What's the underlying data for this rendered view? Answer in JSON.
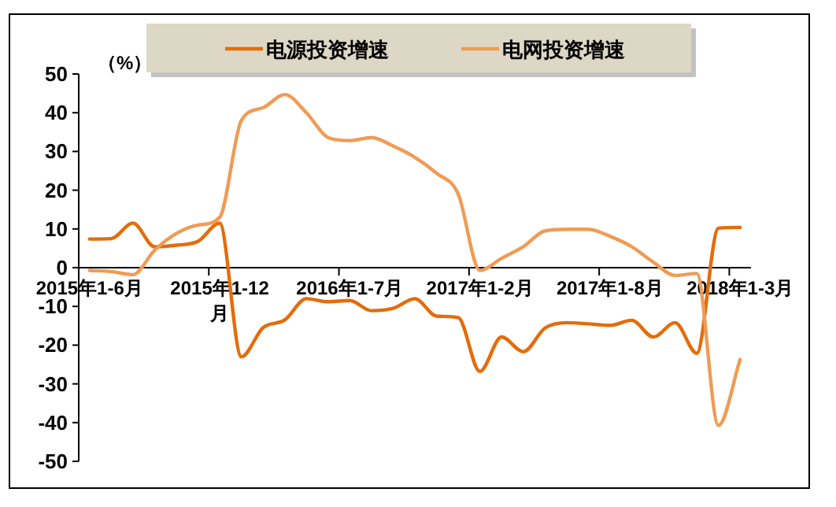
{
  "chart_data": {
    "type": "line",
    "categories": [
      "2015年1-6月",
      null,
      null,
      null,
      null,
      null,
      "2015年1-12月",
      null,
      null,
      null,
      null,
      null,
      "2016年1-7月",
      null,
      null,
      null,
      null,
      null,
      "2017年1-2月",
      null,
      null,
      null,
      null,
      null,
      "2017年1-8月",
      null,
      null,
      null,
      null,
      null,
      "2018年1-3月"
    ],
    "series": [
      {
        "name": "电源投资增速",
        "color": "#e46c0a",
        "values": [
          7.4,
          7.5,
          11.5,
          5.4,
          5.8,
          6.8,
          11.5,
          -23,
          -15.5,
          -13.5,
          -8,
          -8.8,
          -8.5,
          -11.1,
          -10.5,
          -8,
          -12.5,
          -12.9,
          -26.8,
          -17.9,
          -21.7,
          -15.6,
          -14.2,
          -14.5,
          -14.9,
          -13.6,
          -17.9,
          -14.2,
          -22.1,
          10.2,
          10.4
        ]
      },
      {
        "name": "电网投资增速",
        "color": "#f09b55",
        "values": [
          -0.7,
          -1,
          -1.8,
          4.5,
          8.8,
          11,
          13,
          38,
          41.3,
          44.7,
          40,
          33.6,
          32.8,
          33.6,
          31.4,
          28.5,
          24.4,
          19,
          -0.7,
          2.4,
          5.4,
          9.5,
          9.9,
          9.9,
          8.1,
          5.4,
          1.4,
          -2,
          -1.5,
          -40.7,
          -23.7
        ]
      }
    ],
    "ylim": [
      -50,
      50
    ],
    "yticks": [
      -50,
      -40,
      -30,
      -20,
      -10,
      0,
      10,
      20,
      30,
      40,
      50
    ],
    "annotations": [
      "（%）"
    ],
    "legend": "top",
    "grid": false,
    "marker": "none",
    "line_style": "solid"
  }
}
